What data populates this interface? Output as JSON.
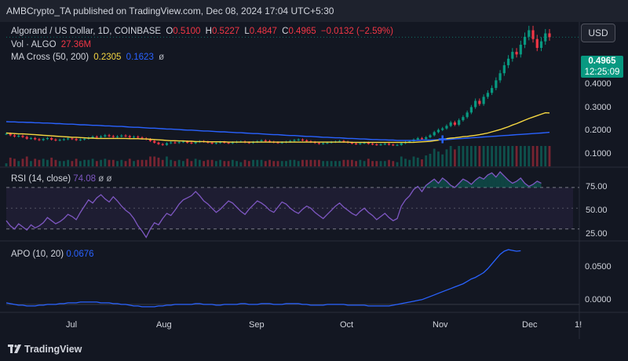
{
  "header": {
    "publisher_line": "AMBCrypto_TA published on TradingView.com, Dec 08, 2024 17:04 UTC+5:30"
  },
  "legend": {
    "symbol": "Algorand / US Dollar, 1D, COINBASE",
    "o_label": "O",
    "o_value": "0.5100",
    "h_label": "H",
    "h_value": "0.5227",
    "l_label": "L",
    "l_value": "0.4847",
    "c_label": "C",
    "c_value": "0.4965",
    "change": "−0.0132 (−2.59%)",
    "vol_label": "Vol · ALGO",
    "vol_value": "27.36M",
    "ma_label": "MA Cross (50, 200)",
    "ma_fast": "0.2305",
    "ma_slow": "0.1623",
    "ma_null": "ø"
  },
  "currency_button": "USD",
  "price_tag": {
    "price": "0.4965",
    "countdown": "12:25:09"
  },
  "rsi": {
    "label": "RSI (14, close)",
    "value": "74.08",
    "null1": "ø",
    "null2": "ø"
  },
  "apo": {
    "label": "APO (10, 20)",
    "value": "0.0676"
  },
  "footer": {
    "brand": "TradingView"
  },
  "colors": {
    "background": "#131722",
    "up": "#089981",
    "down": "#f23645",
    "ma_fast": "#f5d742",
    "ma_slow": "#2962ff",
    "rsi_line": "#7e57c2",
    "apo_line": "#2962ff"
  },
  "chart_data": [
    {
      "type": "candlestick",
      "title": "Algorand / US Dollar, 1D, COINBASE",
      "x_ticks": [
        "Jul",
        "Aug",
        "Sep",
        "Oct",
        "Nov",
        "Dec",
        "1!"
      ],
      "y_ticks": [
        {
          "label": "0.4000",
          "value": 0.4
        },
        {
          "label": "0.3000",
          "value": 0.3
        },
        {
          "label": "0.2000",
          "value": 0.2
        },
        {
          "label": "0.1000",
          "value": 0.1
        }
      ],
      "ylim": [
        0.04,
        0.55
      ],
      "close": [
        0.157,
        0.152,
        0.148,
        0.15,
        0.146,
        0.14,
        0.142,
        0.138,
        0.135,
        0.139,
        0.142,
        0.137,
        0.134,
        0.136,
        0.138,
        0.141,
        0.139,
        0.135,
        0.137,
        0.14,
        0.143,
        0.147,
        0.145,
        0.148,
        0.152,
        0.149,
        0.146,
        0.148,
        0.151,
        0.149,
        0.145,
        0.147,
        0.144,
        0.141,
        0.138,
        0.132,
        0.126,
        0.121,
        0.118,
        0.124,
        0.127,
        0.125,
        0.128,
        0.13,
        0.126,
        0.124,
        0.128,
        0.131,
        0.129,
        0.126,
        0.123,
        0.125,
        0.128,
        0.126,
        0.124,
        0.127,
        0.129,
        0.13,
        0.127,
        0.125,
        0.128,
        0.131,
        0.134,
        0.132,
        0.129,
        0.127,
        0.125,
        0.127,
        0.129,
        0.132,
        0.135,
        0.137,
        0.134,
        0.131,
        0.128,
        0.125,
        0.122,
        0.124,
        0.126,
        0.128,
        0.13,
        0.132,
        0.129,
        0.126,
        0.123,
        0.121,
        0.124,
        0.126,
        0.122,
        0.12,
        0.118,
        0.12,
        0.122,
        0.119,
        0.117,
        0.118,
        0.124,
        0.128,
        0.131,
        0.137,
        0.142,
        0.139,
        0.145,
        0.152,
        0.163,
        0.171,
        0.176,
        0.185,
        0.197,
        0.189,
        0.205,
        0.216,
        0.232,
        0.251,
        0.273,
        0.262,
        0.287,
        0.301,
        0.318,
        0.345,
        0.37,
        0.398,
        0.421,
        0.445,
        0.436,
        0.47,
        0.498,
        0.521,
        0.49,
        0.459,
        0.482,
        0.51,
        0.4965
      ],
      "ma50": [
        0.16,
        0.159,
        0.158,
        0.157,
        0.157,
        0.156,
        0.155,
        0.154,
        0.153,
        0.152,
        0.151,
        0.15,
        0.149,
        0.148,
        0.147,
        0.146,
        0.145,
        0.145,
        0.144,
        0.143,
        0.142,
        0.142,
        0.141,
        0.141,
        0.141,
        0.141,
        0.141,
        0.141,
        0.141,
        0.141,
        0.14,
        0.14,
        0.14,
        0.139,
        0.139,
        0.138,
        0.137,
        0.136,
        0.135,
        0.134,
        0.133,
        0.133,
        0.132,
        0.132,
        0.131,
        0.131,
        0.13,
        0.13,
        0.13,
        0.129,
        0.129,
        0.129,
        0.129,
        0.129,
        0.128,
        0.128,
        0.128,
        0.128,
        0.128,
        0.128,
        0.128,
        0.128,
        0.128,
        0.128,
        0.128,
        0.128,
        0.128,
        0.128,
        0.128,
        0.128,
        0.128,
        0.128,
        0.128,
        0.128,
        0.128,
        0.128,
        0.128,
        0.128,
        0.128,
        0.128,
        0.128,
        0.128,
        0.128,
        0.128,
        0.127,
        0.127,
        0.127,
        0.127,
        0.127,
        0.127,
        0.127,
        0.127,
        0.127,
        0.127,
        0.127,
        0.127,
        0.127,
        0.127,
        0.127,
        0.127,
        0.128,
        0.129,
        0.13,
        0.131,
        0.133,
        0.135,
        0.138,
        0.14,
        0.142,
        0.143,
        0.145,
        0.147,
        0.148,
        0.15,
        0.152,
        0.154,
        0.157,
        0.16,
        0.164,
        0.168,
        0.172,
        0.177,
        0.182,
        0.188,
        0.193,
        0.199,
        0.205,
        0.211,
        0.216,
        0.221,
        0.226,
        0.231,
        0.2305
      ],
      "ma200": [
        0.2,
        0.199,
        0.199,
        0.198,
        0.198,
        0.197,
        0.197,
        0.196,
        0.196,
        0.195,
        0.195,
        0.194,
        0.193,
        0.193,
        0.192,
        0.191,
        0.191,
        0.19,
        0.189,
        0.189,
        0.188,
        0.187,
        0.187,
        0.186,
        0.185,
        0.185,
        0.184,
        0.183,
        0.183,
        0.182,
        0.181,
        0.18,
        0.18,
        0.179,
        0.178,
        0.177,
        0.177,
        0.176,
        0.175,
        0.174,
        0.174,
        0.173,
        0.172,
        0.171,
        0.17,
        0.17,
        0.169,
        0.168,
        0.167,
        0.167,
        0.166,
        0.165,
        0.164,
        0.164,
        0.163,
        0.162,
        0.161,
        0.161,
        0.16,
        0.159,
        0.158,
        0.158,
        0.157,
        0.156,
        0.155,
        0.154,
        0.154,
        0.153,
        0.152,
        0.151,
        0.151,
        0.15,
        0.149,
        0.148,
        0.148,
        0.147,
        0.146,
        0.145,
        0.145,
        0.144,
        0.143,
        0.143,
        0.142,
        0.141,
        0.141,
        0.14,
        0.139,
        0.139,
        0.138,
        0.137,
        0.137,
        0.136,
        0.136,
        0.135,
        0.135,
        0.134,
        0.134,
        0.134,
        0.134,
        0.134,
        0.134,
        0.135,
        0.135,
        0.135,
        0.136,
        0.136,
        0.137,
        0.137,
        0.138,
        0.139,
        0.14,
        0.141,
        0.142,
        0.143,
        0.144,
        0.145,
        0.146,
        0.147,
        0.148,
        0.149,
        0.15,
        0.151,
        0.152,
        0.153,
        0.154,
        0.155,
        0.156,
        0.157,
        0.158,
        0.159,
        0.16,
        0.161,
        0.1623
      ]
    },
    {
      "type": "line",
      "title": "RSI (14, close)",
      "y_ticks": [
        {
          "label": "75.00",
          "value": 75
        },
        {
          "label": "50.00",
          "value": 50
        },
        {
          "label": "25.00",
          "value": 25
        }
      ],
      "ylim": [
        20,
        88
      ],
      "values": [
        38,
        33,
        30,
        35,
        32,
        29,
        34,
        31,
        33,
        36,
        41,
        38,
        35,
        37,
        40,
        44,
        42,
        39,
        46,
        52,
        58,
        55,
        60,
        63,
        59,
        56,
        61,
        57,
        52,
        48,
        45,
        40,
        33,
        28,
        22,
        30,
        36,
        34,
        40,
        45,
        43,
        48,
        54,
        58,
        60,
        62,
        66,
        62,
        57,
        54,
        50,
        46,
        49,
        53,
        57,
        55,
        51,
        47,
        44,
        49,
        53,
        57,
        55,
        52,
        48,
        46,
        51,
        56,
        54,
        50,
        47,
        45,
        49,
        52,
        50,
        46,
        43,
        40,
        44,
        48,
        52,
        55,
        51,
        48,
        45,
        43,
        47,
        50,
        46,
        43,
        39,
        42,
        45,
        41,
        38,
        40,
        52,
        58,
        62,
        68,
        71,
        66,
        72,
        75,
        78,
        74,
        79,
        76,
        72,
        70,
        74,
        78,
        76,
        73,
        77,
        80,
        78,
        82,
        84,
        80,
        85,
        81,
        77,
        74,
        76,
        79,
        74,
        71,
        73,
        76,
        74.08
      ]
    },
    {
      "type": "line",
      "title": "APO (10, 20)",
      "y_ticks": [
        {
          "label": "0.0500",
          "value": 0.05
        },
        {
          "label": "0.0000",
          "value": 0
        }
      ],
      "ylim": [
        -0.008,
        0.075
      ],
      "values": [
        0.002,
        0.001,
        0.0,
        -0.001,
        -0.001,
        -0.002,
        -0.002,
        -0.002,
        -0.001,
        -0.001,
        0.0,
        0.0,
        0.0,
        0.001,
        0.001,
        0.002,
        0.002,
        0.002,
        0.003,
        0.003,
        0.003,
        0.003,
        0.003,
        0.002,
        0.002,
        0.002,
        0.001,
        0.001,
        0.0,
        0.0,
        -0.001,
        -0.002,
        -0.002,
        -0.003,
        -0.003,
        -0.003,
        -0.003,
        -0.002,
        -0.002,
        -0.001,
        -0.001,
        0.0,
        0.0,
        0.0,
        0.0,
        0.0,
        0.001,
        0.001,
        0.0,
        0.0,
        0.0,
        -0.001,
        -0.001,
        0.0,
        0.0,
        0.0,
        0.0,
        0.001,
        0.001,
        0.0,
        0.0,
        0.0,
        0.001,
        0.001,
        0.001,
        0.0,
        0.0,
        0.0,
        0.001,
        0.001,
        0.001,
        0.001,
        0.0,
        0.0,
        -0.001,
        -0.001,
        -0.001,
        -0.001,
        0.0,
        0.0,
        0.0,
        0.0,
        0.0,
        -0.001,
        -0.001,
        -0.001,
        -0.001,
        -0.001,
        -0.002,
        -0.002,
        -0.002,
        -0.002,
        -0.002,
        -0.002,
        -0.001,
        0.0,
        0.001,
        0.002,
        0.003,
        0.004,
        0.005,
        0.006,
        0.008,
        0.01,
        0.012,
        0.014,
        0.016,
        0.018,
        0.02,
        0.022,
        0.024,
        0.026,
        0.029,
        0.032,
        0.034,
        0.037,
        0.04,
        0.045,
        0.051,
        0.057,
        0.063,
        0.067,
        0.069,
        0.068,
        0.067,
        0.0676
      ]
    }
  ]
}
